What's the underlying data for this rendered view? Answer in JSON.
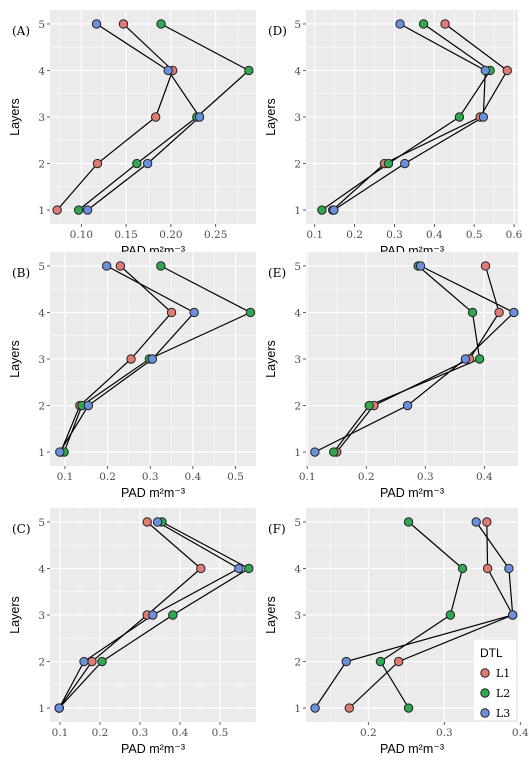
{
  "chart_data": [
    {
      "panel_label": "(A)",
      "type": "line",
      "xlabel": "PAD",
      "xunit": "m²m⁻³",
      "ylabel": "Layers",
      "xlim": [
        0.065,
        0.295
      ],
      "ylim": [
        0.7,
        5.3
      ],
      "xticks": [
        0.1,
        0.15,
        0.2,
        0.25
      ],
      "xtick_labels": [
        "0.10",
        "0.15",
        "0.20",
        "0.25"
      ],
      "yticks": [
        1,
        2,
        3,
        4,
        5
      ],
      "series": [
        {
          "name": "L1",
          "points": [
            [
              0.073,
              1
            ],
            [
              0.118,
              2
            ],
            [
              0.183,
              3
            ],
            [
              0.202,
              4
            ],
            [
              0.147,
              5
            ]
          ]
        },
        {
          "name": "L2",
          "points": [
            [
              0.097,
              1
            ],
            [
              0.162,
              2
            ],
            [
              0.229,
              3
            ],
            [
              0.287,
              4
            ],
            [
              0.189,
              5
            ]
          ]
        },
        {
          "name": "L3",
          "points": [
            [
              0.107,
              1
            ],
            [
              0.174,
              2
            ],
            [
              0.232,
              3
            ],
            [
              0.197,
              4
            ],
            [
              0.117,
              5
            ]
          ]
        }
      ]
    },
    {
      "panel_label": "(D)",
      "type": "line",
      "xlabel": "PAD",
      "xunit": "m²m⁻³",
      "ylabel": "Layers",
      "xlim": [
        0.078,
        0.61
      ],
      "ylim": [
        0.7,
        5.3
      ],
      "xticks": [
        0.1,
        0.2,
        0.3,
        0.4,
        0.5,
        0.6
      ],
      "xtick_labels": [
        "0.1",
        "0.2",
        "0.3",
        "0.4",
        "0.5",
        "0.6"
      ],
      "yticks": [
        1,
        2,
        3,
        4,
        5
      ],
      "series": [
        {
          "name": "L1",
          "points": [
            [
              0.145,
              1
            ],
            [
              0.275,
              2
            ],
            [
              0.515,
              3
            ],
            [
              0.583,
              4
            ],
            [
              0.427,
              5
            ]
          ]
        },
        {
          "name": "L2",
          "points": [
            [
              0.118,
              1
            ],
            [
              0.285,
              2
            ],
            [
              0.463,
              3
            ],
            [
              0.54,
              4
            ],
            [
              0.373,
              5
            ]
          ]
        },
        {
          "name": "L3",
          "points": [
            [
              0.148,
              1
            ],
            [
              0.326,
              2
            ],
            [
              0.523,
              3
            ],
            [
              0.528,
              4
            ],
            [
              0.314,
              5
            ]
          ]
        }
      ]
    },
    {
      "panel_label": "(B)",
      "type": "line",
      "xlabel": "PAD",
      "xunit": "m²m⁻³",
      "ylabel": "Layers",
      "xlim": [
        0.065,
        0.548
      ],
      "ylim": [
        0.7,
        5.3
      ],
      "xticks": [
        0.1,
        0.2,
        0.3,
        0.4,
        0.5
      ],
      "xtick_labels": [
        "0.1",
        "0.2",
        "0.3",
        "0.4",
        "0.5"
      ],
      "yticks": [
        1,
        2,
        3,
        4,
        5
      ],
      "series": [
        {
          "name": "L1",
          "points": [
            [
              0.09,
              1
            ],
            [
              0.135,
              2
            ],
            [
              0.255,
              3
            ],
            [
              0.35,
              4
            ],
            [
              0.23,
              5
            ]
          ]
        },
        {
          "name": "L2",
          "points": [
            [
              0.098,
              1
            ],
            [
              0.14,
              2
            ],
            [
              0.298,
              3
            ],
            [
              0.535,
              4
            ],
            [
              0.325,
              5
            ]
          ]
        },
        {
          "name": "L3",
          "points": [
            [
              0.088,
              1
            ],
            [
              0.155,
              2
            ],
            [
              0.305,
              3
            ],
            [
              0.403,
              4
            ],
            [
              0.198,
              5
            ]
          ]
        }
      ]
    },
    {
      "panel_label": "(E)",
      "type": "line",
      "xlabel": "PAD",
      "xunit": "m²m⁻³",
      "ylabel": "Layers",
      "xlim": [
        0.098,
        0.457
      ],
      "ylim": [
        0.7,
        5.3
      ],
      "xticks": [
        0.1,
        0.2,
        0.3,
        0.4
      ],
      "xtick_labels": [
        "0.1",
        "0.2",
        "0.3",
        "0.4"
      ],
      "yticks": [
        1,
        2,
        3,
        4,
        5
      ],
      "series": [
        {
          "name": "L1",
          "points": [
            [
              0.15,
              1
            ],
            [
              0.213,
              2
            ],
            [
              0.375,
              3
            ],
            [
              0.425,
              4
            ],
            [
              0.402,
              5
            ]
          ]
        },
        {
          "name": "L2",
          "points": [
            [
              0.145,
              1
            ],
            [
              0.205,
              2
            ],
            [
              0.392,
              3
            ],
            [
              0.38,
              4
            ],
            [
              0.288,
              5
            ]
          ]
        },
        {
          "name": "L3",
          "points": [
            [
              0.113,
              1
            ],
            [
              0.27,
              2
            ],
            [
              0.368,
              3
            ],
            [
              0.45,
              4
            ],
            [
              0.292,
              5
            ]
          ]
        }
      ]
    },
    {
      "panel_label": "(C)",
      "type": "line",
      "xlabel": "PAD",
      "xunit": "m²m⁻³",
      "ylabel": "Layers",
      "xlim": [
        0.075,
        0.59
      ],
      "ylim": [
        0.7,
        5.3
      ],
      "xticks": [
        0.1,
        0.2,
        0.3,
        0.4,
        0.5
      ],
      "xtick_labels": [
        "0.1",
        "0.2",
        "0.3",
        "0.4",
        "0.5"
      ],
      "yticks": [
        1,
        2,
        3,
        4,
        5
      ],
      "series": [
        {
          "name": "L1",
          "points": [
            [
              0.098,
              1
            ],
            [
              0.18,
              2
            ],
            [
              0.318,
              3
            ],
            [
              0.452,
              4
            ],
            [
              0.318,
              5
            ]
          ]
        },
        {
          "name": "L2",
          "points": [
            [
              0.098,
              1
            ],
            [
              0.205,
              2
            ],
            [
              0.382,
              3
            ],
            [
              0.572,
              4
            ],
            [
              0.355,
              5
            ]
          ]
        },
        {
          "name": "L3",
          "points": [
            [
              0.098,
              1
            ],
            [
              0.16,
              2
            ],
            [
              0.332,
              3
            ],
            [
              0.547,
              4
            ],
            [
              0.344,
              5
            ]
          ]
        }
      ]
    },
    {
      "panel_label": "(F)",
      "type": "line",
      "xlabel": "PAD",
      "xunit": "m²m⁻³",
      "ylabel": "Layers",
      "xlim": [
        0.118,
        0.397
      ],
      "ylim": [
        0.7,
        5.3
      ],
      "xticks": [
        0.2,
        0.3,
        0.4
      ],
      "xtick_labels": [
        "0.2",
        "0.3",
        "0.4"
      ],
      "yticks": [
        1,
        2,
        3,
        4,
        5
      ],
      "series": [
        {
          "name": "L1",
          "points": [
            [
              0.175,
              1
            ],
            [
              0.24,
              2
            ],
            [
              0.39,
              3
            ],
            [
              0.357,
              4
            ],
            [
              0.356,
              5
            ]
          ]
        },
        {
          "name": "L2",
          "points": [
            [
              0.253,
              1
            ],
            [
              0.216,
              2
            ],
            [
              0.308,
              3
            ],
            [
              0.324,
              4
            ],
            [
              0.253,
              5
            ]
          ]
        },
        {
          "name": "L3",
          "points": [
            [
              0.13,
              1
            ],
            [
              0.171,
              2
            ],
            [
              0.39,
              3
            ],
            [
              0.385,
              4
            ],
            [
              0.342,
              5
            ]
          ]
        }
      ]
    }
  ],
  "legend": {
    "title": "DTL",
    "placement": "inside panel (F), bottom-right",
    "items": [
      {
        "label": "L1",
        "color": "#e07b74"
      },
      {
        "label": "L2",
        "color": "#2fa84f"
      },
      {
        "label": "L3",
        "color": "#6a8fdd"
      }
    ]
  },
  "colors": {
    "L1": "#e07b74",
    "L2": "#2fa84f",
    "L3": "#6a8fdd",
    "panel_background": "#ebebeb",
    "grid": "#ffffff",
    "line": "#000000"
  }
}
